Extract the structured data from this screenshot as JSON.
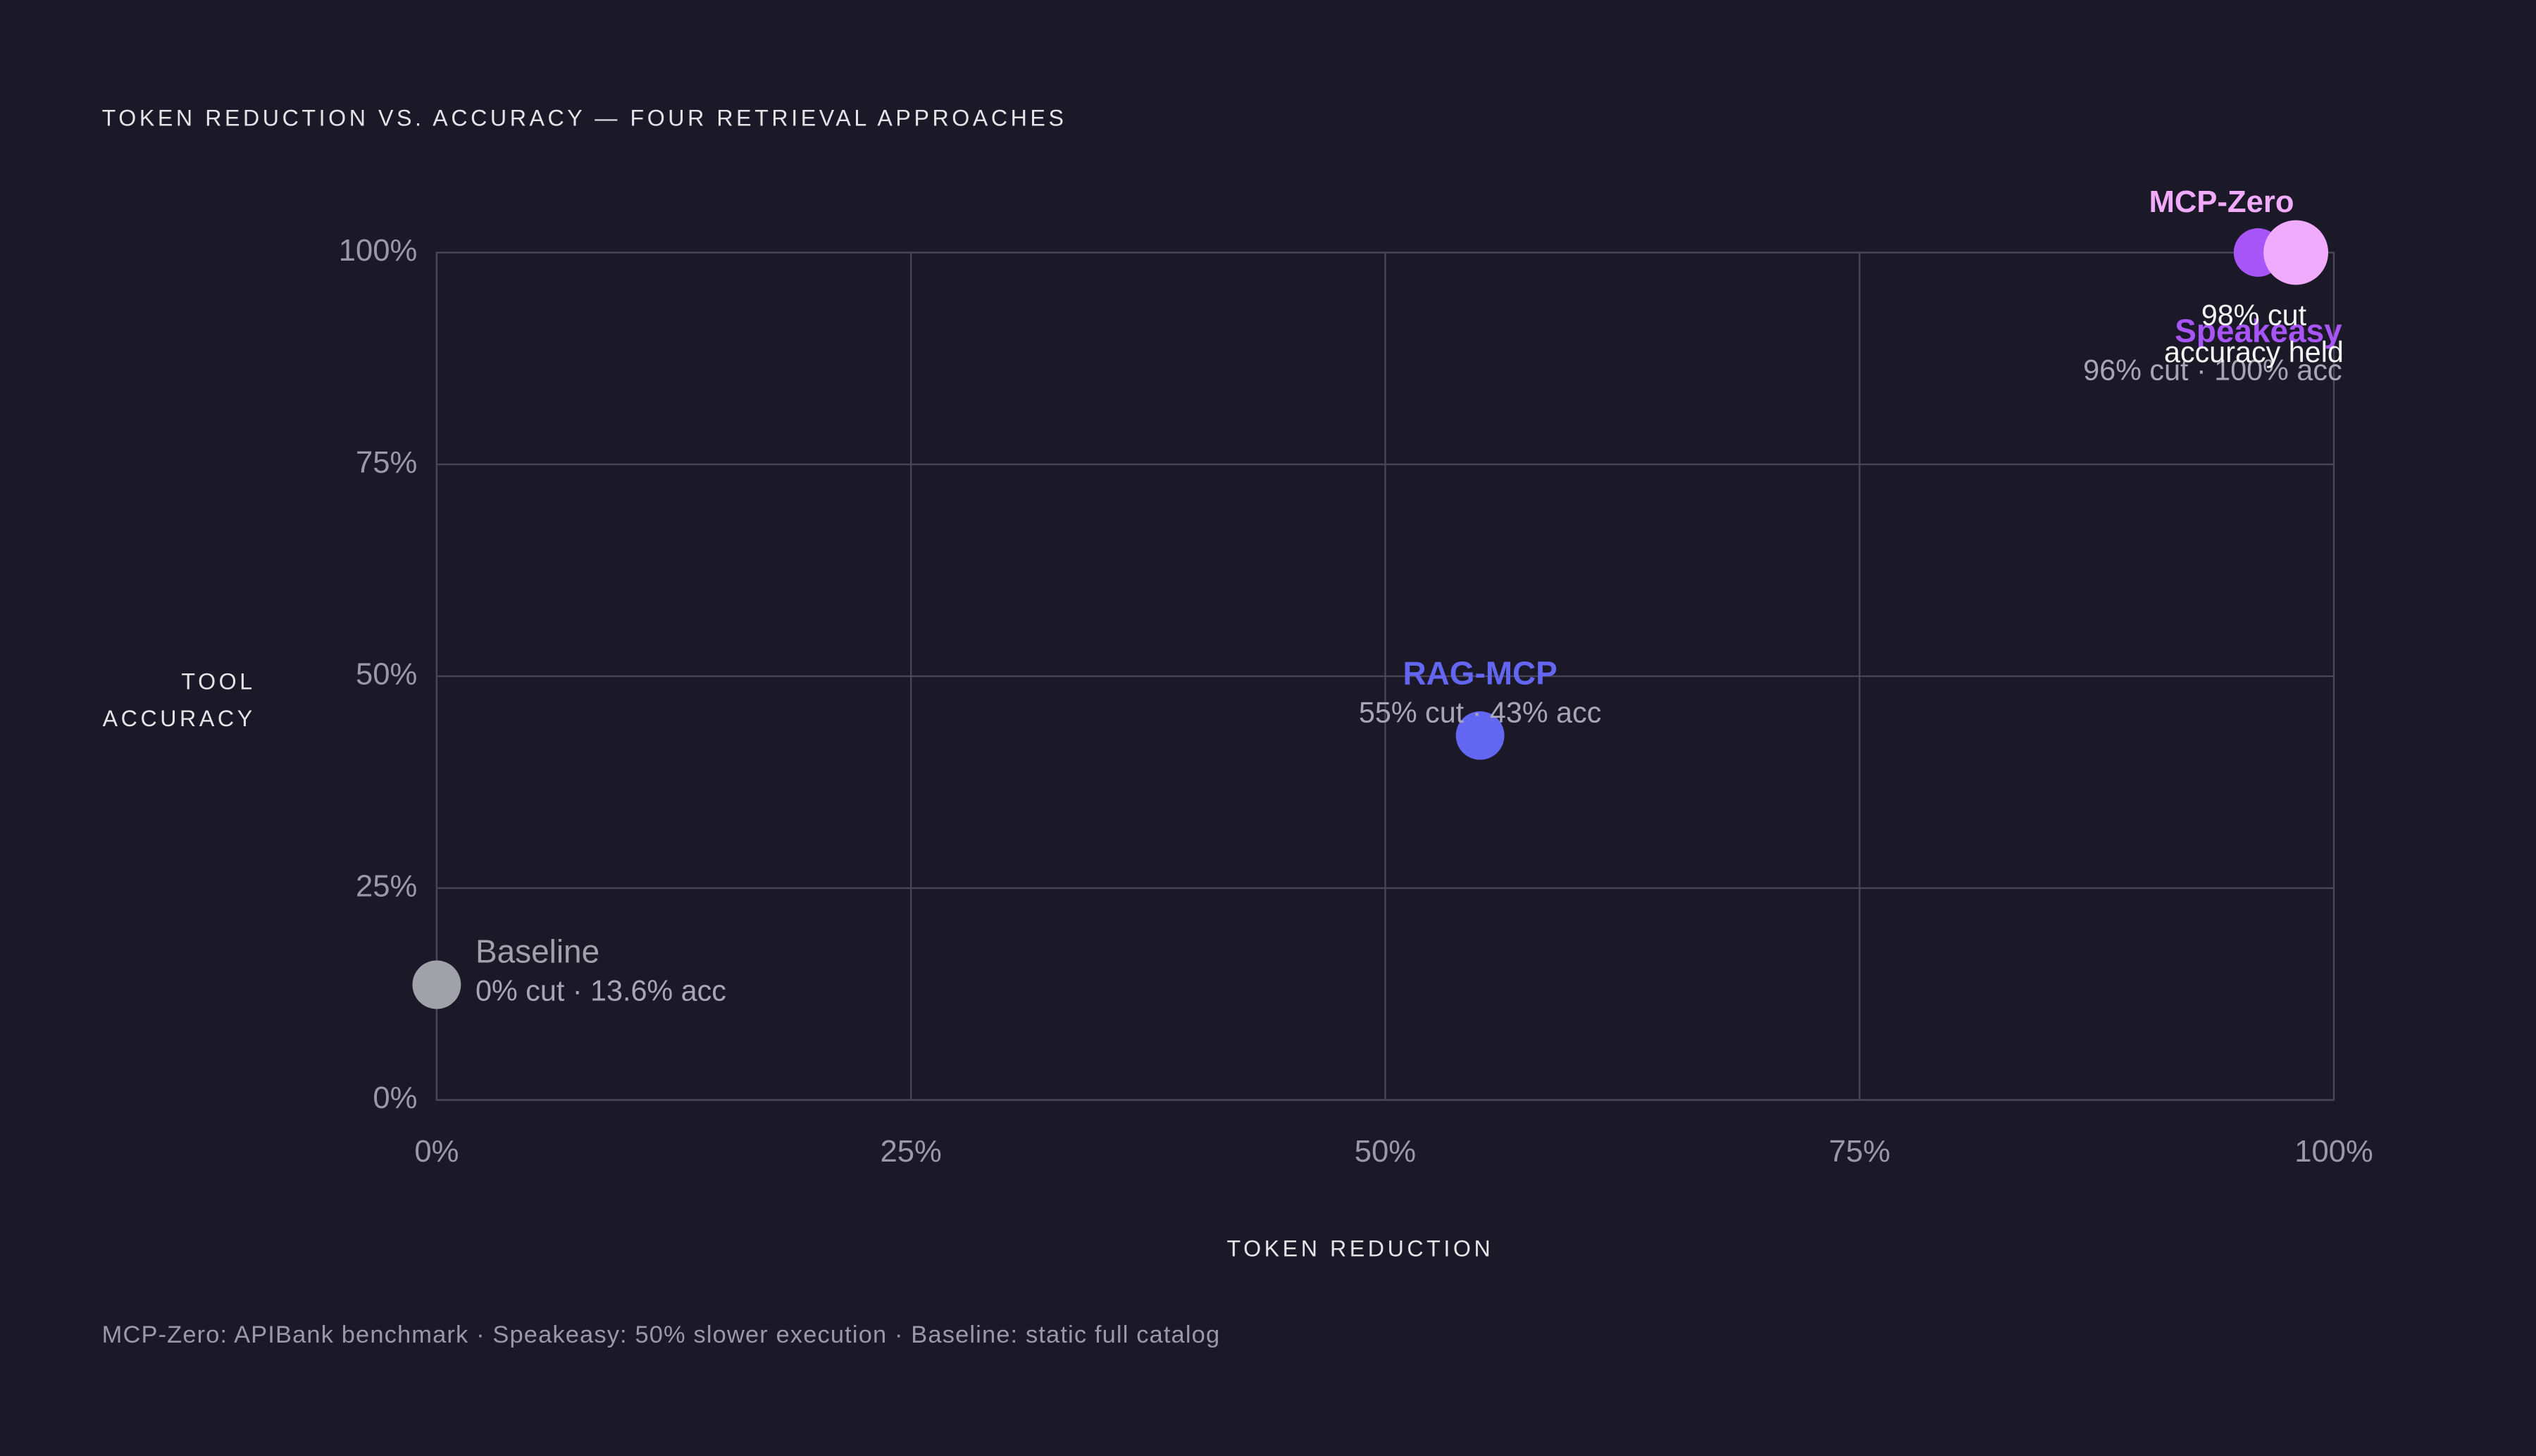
{
  "chart_data": {
    "type": "scatter",
    "title": "TOKEN REDUCTION VS. ACCURACY — FOUR RETRIEVAL APPROACHES",
    "xlabel": "TOKEN REDUCTION",
    "ylabel": "TOOL ACCURACY",
    "note": "MCP-Zero: APIBank benchmark · Speakeasy: 50% slower execution · Baseline: static full catalog",
    "xlim": [
      0,
      100
    ],
    "ylim": [
      0,
      100
    ],
    "xticks": [
      {
        "value": 0,
        "label": "0%"
      },
      {
        "value": 25,
        "label": "25%"
      },
      {
        "value": 50,
        "label": "50%"
      },
      {
        "value": 75,
        "label": "75%"
      },
      {
        "value": 100,
        "label": "100%"
      }
    ],
    "yticks": [
      {
        "value": 0,
        "label": "0%"
      },
      {
        "value": 25,
        "label": "25%"
      },
      {
        "value": 50,
        "label": "50%"
      },
      {
        "value": 75,
        "label": "75%"
      },
      {
        "value": 100,
        "label": "100%"
      }
    ],
    "grid": true,
    "series": [
      {
        "name": "Baseline",
        "color": "#a1a1aa",
        "x": [
          0
        ],
        "values": [
          13.6
        ],
        "annotation": [
          "0% cut · 13.6% acc"
        ]
      },
      {
        "name": "RAG-MCP",
        "color": "#6366f1",
        "x": [
          55
        ],
        "values": [
          43
        ],
        "annotation": [
          "55% cut · 43% acc"
        ]
      },
      {
        "name": "Speakeasy",
        "color": "#a855f7",
        "x": [
          96
        ],
        "values": [
          100
        ],
        "annotation": [
          "96% cut · 100% acc"
        ]
      },
      {
        "name": "MCP-Zero",
        "color": "#f0abfc",
        "x": [
          98
        ],
        "values": [
          100
        ],
        "annotation": [
          "98% cut",
          "accuracy held"
        ]
      }
    ]
  }
}
